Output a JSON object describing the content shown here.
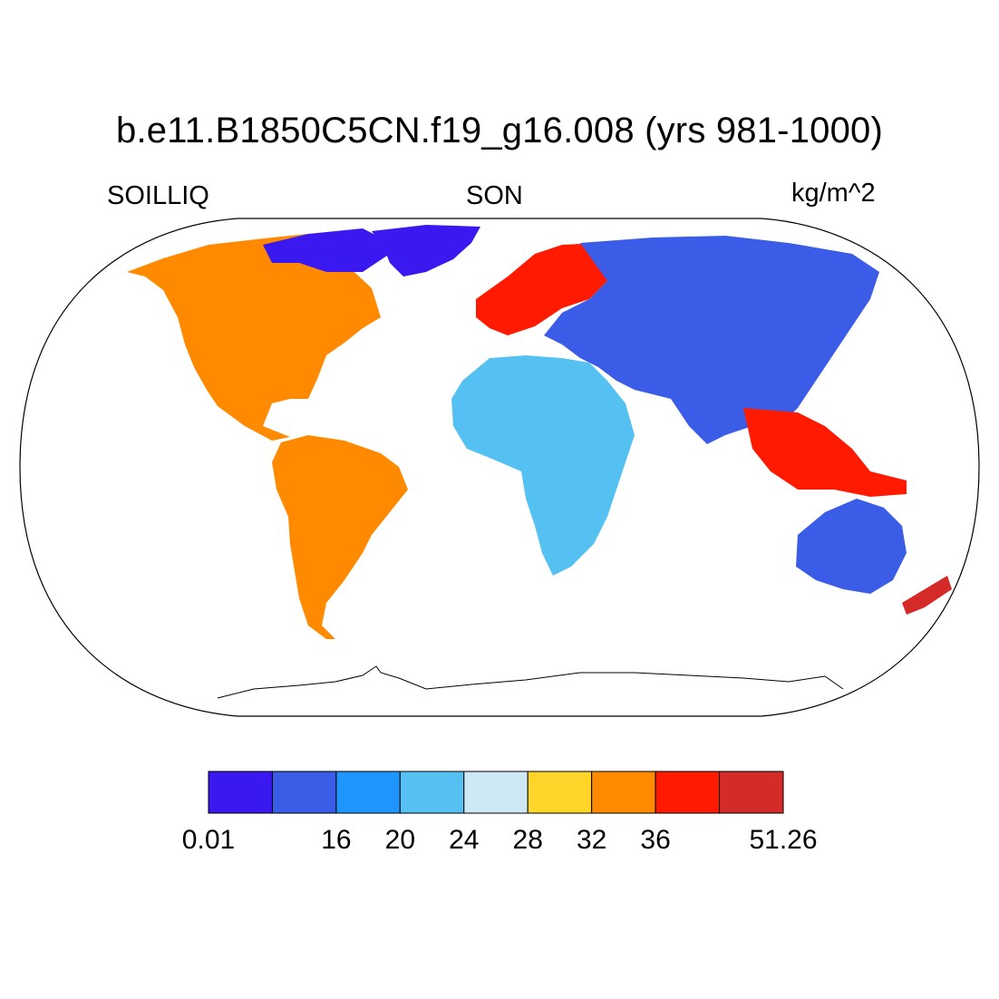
{
  "title": "b.e11.B1850C5CN.f19_g16.008 (yrs 981-1000)",
  "variable": "SOILLIQ",
  "season": "SON",
  "units": "kg/m^2",
  "colorbar": {
    "colors": [
      "#3a18f0",
      "#3b5ce6",
      "#1f96ff",
      "#55c1f2",
      "#cfe8f6",
      "#ffd52a",
      "#ff8a00",
      "#ff1a00",
      "#d42a28"
    ],
    "labels": [
      "0.01",
      "",
      "16",
      "20",
      "24",
      "28",
      "32",
      "36",
      "",
      "51.26"
    ]
  },
  "projection": "Robinson"
}
